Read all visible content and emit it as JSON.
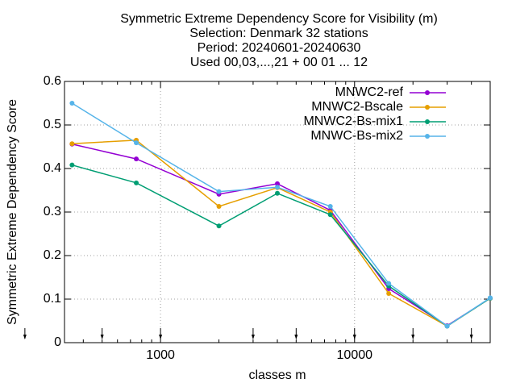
{
  "chart_data": {
    "type": "line",
    "title_lines": [
      "Symmetric Extreme Dependency Score  for Visibility (m)",
      "Selection: Denmark     32 stations",
      "Period: 20240601-20240630",
      "Used 00,03,...,21 + 00 01 ... 12"
    ],
    "xlabel": "classes m",
    "ylabel": "Symmetric Extreme Dependency Score",
    "x": [
      350,
      750,
      2000,
      4000,
      7500,
      15000,
      30000,
      50000
    ],
    "series": [
      {
        "name": "MNWC2-ref",
        "color": "#9400d3",
        "values": [
          0.456,
          0.422,
          0.341,
          0.365,
          0.304,
          0.124,
          0.039,
          0.102
        ]
      },
      {
        "name": "MNWC2-Bscale",
        "color": "#e69f00",
        "values": [
          0.457,
          0.465,
          0.313,
          0.356,
          0.3,
          0.113,
          0.038,
          0.102
        ]
      },
      {
        "name": "MNWC2-Bs-mix1",
        "color": "#009e73",
        "values": [
          0.408,
          0.367,
          0.268,
          0.343,
          0.294,
          0.13,
          0.038,
          0.102
        ]
      },
      {
        "name": "MNWC-Bs-mix2",
        "color": "#56b4e9",
        "values": [
          0.55,
          0.459,
          0.347,
          0.357,
          0.313,
          0.136,
          0.038,
          0.103
        ]
      }
    ],
    "thresholds": [
      200,
      500,
      1000,
      3000,
      5000,
      10000,
      20000,
      40000
    ],
    "xlim": [
      320,
      50000
    ],
    "xticks": [
      1000,
      10000
    ],
    "xscale": "log",
    "ylim": [
      0,
      0.6
    ],
    "yticks": [
      0,
      0.1,
      0.2,
      0.3,
      0.4,
      0.5,
      0.6
    ],
    "grid": true,
    "legend": "top-right"
  }
}
